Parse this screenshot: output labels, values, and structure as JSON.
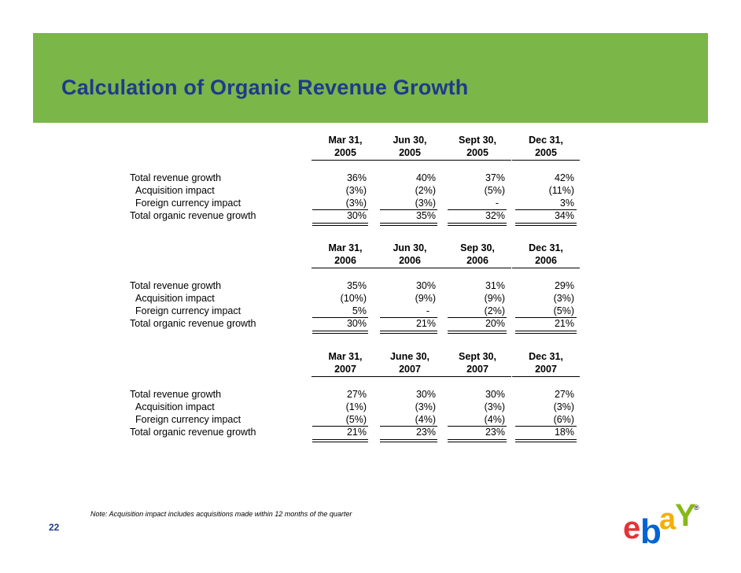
{
  "slide": {
    "title": "Calculation of Organic Revenue Growth",
    "note": "Note:  Acquisition impact includes acquisitions made within 12 months of the quarter",
    "page_number": "22",
    "logo_text": "ebay",
    "registered_mark": "®"
  },
  "colors": {
    "banner": "#7ab648",
    "title": "#1f3a8a",
    "logo_e": "#e53238",
    "logo_b": "#0064d2",
    "logo_a": "#f5af02",
    "logo_y": "#86b817"
  },
  "sections": [
    {
      "headers": [
        {
          "line1": "Mar 31,",
          "line2": "2005"
        },
        {
          "line1": "Jun 30,",
          "line2": "2005"
        },
        {
          "line1": "Sept 30,",
          "line2": "2005"
        },
        {
          "line1": "Dec 31,",
          "line2": "2005"
        }
      ],
      "rows": [
        {
          "label": "Total revenue growth",
          "values": [
            "36%",
            "40%",
            "37%",
            "42%"
          ]
        },
        {
          "label": "Acquisition impact",
          "values": [
            "(3%)",
            "(2%)",
            "(5%)",
            "(11%)"
          ]
        },
        {
          "label": "Foreign currency impact",
          "values": [
            "(3%)",
            "(3%)",
            "-",
            "3%"
          ]
        },
        {
          "label": "Total organic revenue growth",
          "values": [
            "30%",
            "35%",
            "32%",
            "34%"
          ]
        }
      ]
    },
    {
      "headers": [
        {
          "line1": "Mar 31,",
          "line2": "2006"
        },
        {
          "line1": "Jun 30,",
          "line2": "2006"
        },
        {
          "line1": "Sep 30,",
          "line2": "2006"
        },
        {
          "line1": "Dec 31,",
          "line2": "2006"
        }
      ],
      "rows": [
        {
          "label": "Total revenue growth",
          "values": [
            "35%",
            "30%",
            "31%",
            "29%"
          ]
        },
        {
          "label": "Acquisition impact",
          "values": [
            "(10%)",
            "(9%)",
            "(9%)",
            "(3%)"
          ]
        },
        {
          "label": "Foreign currency impact",
          "values": [
            "5%",
            "-",
            "(2%)",
            "(5%)"
          ]
        },
        {
          "label": "Total organic revenue growth",
          "values": [
            "30%",
            "21%",
            "20%",
            "21%"
          ]
        }
      ]
    },
    {
      "headers": [
        {
          "line1": "Mar 31,",
          "line2": "2007"
        },
        {
          "line1": "June 30,",
          "line2": "2007"
        },
        {
          "line1": "Sept 30,",
          "line2": "2007"
        },
        {
          "line1": "Dec 31,",
          "line2": "2007"
        }
      ],
      "rows": [
        {
          "label": "Total revenue growth",
          "values": [
            "27%",
            "30%",
            "30%",
            "27%"
          ]
        },
        {
          "label": "Acquisition impact",
          "values": [
            "(1%)",
            "(3%)",
            "(3%)",
            "(3%)"
          ]
        },
        {
          "label": "Foreign currency impact",
          "values": [
            "(5%)",
            "(4%)",
            "(4%)",
            "(6%)"
          ]
        },
        {
          "label": "Total organic revenue growth",
          "values": [
            "21%",
            "23%",
            "23%",
            "18%"
          ]
        }
      ]
    }
  ]
}
